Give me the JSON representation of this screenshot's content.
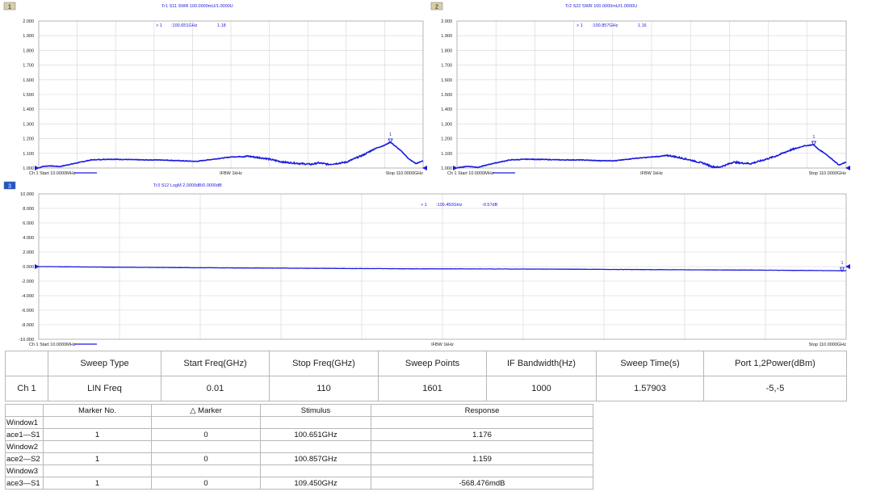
{
  "charts": [
    {
      "id": 1,
      "window_badge": "1",
      "trace_title": "Tr1 S11 SWR 100.0000mU/1.0000U",
      "marker_readout": {
        "symbol": ">",
        "no": "1",
        "stimulus": ":100.651GHz",
        "response": "1.18"
      },
      "marker_label": "1",
      "footer": {
        "start": "Ch 1 Start 10.0000MHz",
        "ifbw": "IFBW 1kHz",
        "stop": "Stop 110.0000GHz"
      },
      "yticks": [
        "2.000",
        "1.900",
        "1.800",
        "1.700",
        "1.600",
        "1.500",
        "1.400",
        "1.300",
        "1.200",
        "1.100",
        "1.000"
      ]
    },
    {
      "id": 2,
      "window_badge": "2",
      "trace_title": "Tr2 S22 SWR 100.0000mU/1.0000U",
      "marker_readout": {
        "symbol": ">",
        "no": "1",
        "stimulus": ":100.857GHz",
        "response": "1.16"
      },
      "marker_label": "1",
      "footer": {
        "start": "Ch 1 Start 10.0000MHz",
        "ifbw": "IFBW 1kHz",
        "stop": "Stop 110.0000GHz"
      },
      "yticks": [
        "2.000",
        "1.900",
        "1.800",
        "1.700",
        "1.600",
        "1.500",
        "1.400",
        "1.300",
        "1.200",
        "1.100",
        "1.000"
      ]
    },
    {
      "id": 3,
      "window_badge": "3",
      "trace_title": "Tr3 S12 LogM 2.0000dB/0.0000dB",
      "marker_readout": {
        "symbol": ">",
        "no": "1",
        "stimulus": ":109.450GHz",
        "response": "-0.57dB"
      },
      "marker_label": "1",
      "footer": {
        "start": "Ch 1 Start 10.0000MHz",
        "ifbw": "IFBW 1kHz",
        "stop": "Stop 110.0000GHz"
      },
      "yticks": [
        "10.000",
        "8.000",
        "6.000",
        "4.000",
        "2.000",
        "0.000",
        "-2.000",
        "-4.000",
        "-6.000",
        "-8.000",
        "-10.000"
      ]
    }
  ],
  "chart_data": [
    {
      "type": "line",
      "title": "Tr1 S11 SWR 100.0000mU/1.0000U",
      "xlabel": "",
      "ylabel": "",
      "xlim": [
        0.01,
        110
      ],
      "ylim": [
        1.0,
        2.0
      ],
      "grid": true,
      "series": [
        {
          "name": "Tr1 S11",
          "color": "#1a1ae0",
          "x": [
            0.01,
            1,
            3,
            6,
            10,
            15,
            20,
            25,
            30,
            35,
            40,
            45,
            50,
            55,
            60,
            65,
            70,
            75,
            78,
            80,
            83,
            85,
            88,
            90,
            93,
            96,
            99,
            100.651,
            102,
            104,
            106,
            108,
            110
          ],
          "y": [
            1.0,
            1.01,
            1.015,
            1.01,
            1.03,
            1.055,
            1.06,
            1.058,
            1.055,
            1.055,
            1.05,
            1.045,
            1.06,
            1.075,
            1.08,
            1.065,
            1.04,
            1.03,
            1.025,
            1.035,
            1.025,
            1.03,
            1.04,
            1.06,
            1.09,
            1.13,
            1.155,
            1.176,
            1.15,
            1.11,
            1.06,
            1.03,
            1.05
          ]
        }
      ],
      "marker": {
        "x": 100.651,
        "y": 1.176
      }
    },
    {
      "type": "line",
      "title": "Tr2 S22 SWR 100.0000mU/1.0000U",
      "xlabel": "",
      "ylabel": "",
      "xlim": [
        0.01,
        110
      ],
      "ylim": [
        1.0,
        2.0
      ],
      "grid": true,
      "series": [
        {
          "name": "Tr2 S22",
          "color": "#1a1ae0",
          "x": [
            0.01,
            1,
            3,
            6,
            10,
            15,
            20,
            25,
            30,
            35,
            40,
            45,
            50,
            55,
            60,
            65,
            70,
            72,
            74,
            76,
            78,
            80,
            83,
            86,
            90,
            94,
            98,
            100.857,
            102,
            104,
            106,
            108,
            110
          ],
          "y": [
            1.0,
            1.005,
            1.012,
            1.005,
            1.03,
            1.055,
            1.06,
            1.058,
            1.055,
            1.055,
            1.05,
            1.05,
            1.065,
            1.075,
            1.085,
            1.06,
            1.03,
            1.01,
            1.005,
            1.02,
            1.04,
            1.035,
            1.03,
            1.05,
            1.08,
            1.12,
            1.15,
            1.159,
            1.13,
            1.1,
            1.06,
            1.02,
            1.04
          ]
        }
      ],
      "marker": {
        "x": 100.857,
        "y": 1.159
      }
    },
    {
      "type": "line",
      "title": "Tr3 S12 LogM 2.0000dB/0.0000dB",
      "xlabel": "",
      "ylabel": "",
      "xlim": [
        0.01,
        110
      ],
      "ylim": [
        -10,
        10
      ],
      "grid": true,
      "series": [
        {
          "name": "Tr3 S12",
          "color": "#1a1ae0",
          "x": [
            0.01,
            10,
            20,
            30,
            40,
            50,
            60,
            70,
            80,
            90,
            100,
            109.45,
            110
          ],
          "y": [
            0.0,
            -0.08,
            -0.15,
            -0.2,
            -0.25,
            -0.3,
            -0.32,
            -0.35,
            -0.4,
            -0.45,
            -0.5,
            -0.568,
            -0.57
          ]
        }
      ],
      "marker": {
        "x": 109.45,
        "y": -0.568
      }
    }
  ],
  "setup_table": {
    "headers": [
      "",
      "Sweep Type",
      "Start Freq(GHz)",
      "Stop Freq(GHz)",
      "Sweep Points",
      "IF Bandwidth(Hz)",
      "Sweep Time(s)",
      "Port 1,2Power(dBm)"
    ],
    "row": [
      "Ch 1",
      "LIN Freq",
      "0.01",
      "110",
      "1601",
      "1000",
      "1.57903",
      "-5,-5"
    ]
  },
  "marker_table": {
    "headers": [
      "",
      "Marker No.",
      "△ Marker",
      "Stimulus",
      "Response"
    ],
    "rows": [
      [
        "Window1",
        "",
        "",
        "",
        ""
      ],
      [
        "ace1—S1",
        "1",
        "0",
        "100.651GHz",
        "1.176"
      ],
      [
        "Window2",
        "",
        "",
        "",
        ""
      ],
      [
        "ace2—S2",
        "1",
        "0",
        "100.857GHz",
        "1.159"
      ],
      [
        "Window3",
        "",
        "",
        "",
        ""
      ],
      [
        "ace3—S1",
        "1",
        "0",
        "109.450GHz",
        "-568.476mdB"
      ]
    ]
  }
}
